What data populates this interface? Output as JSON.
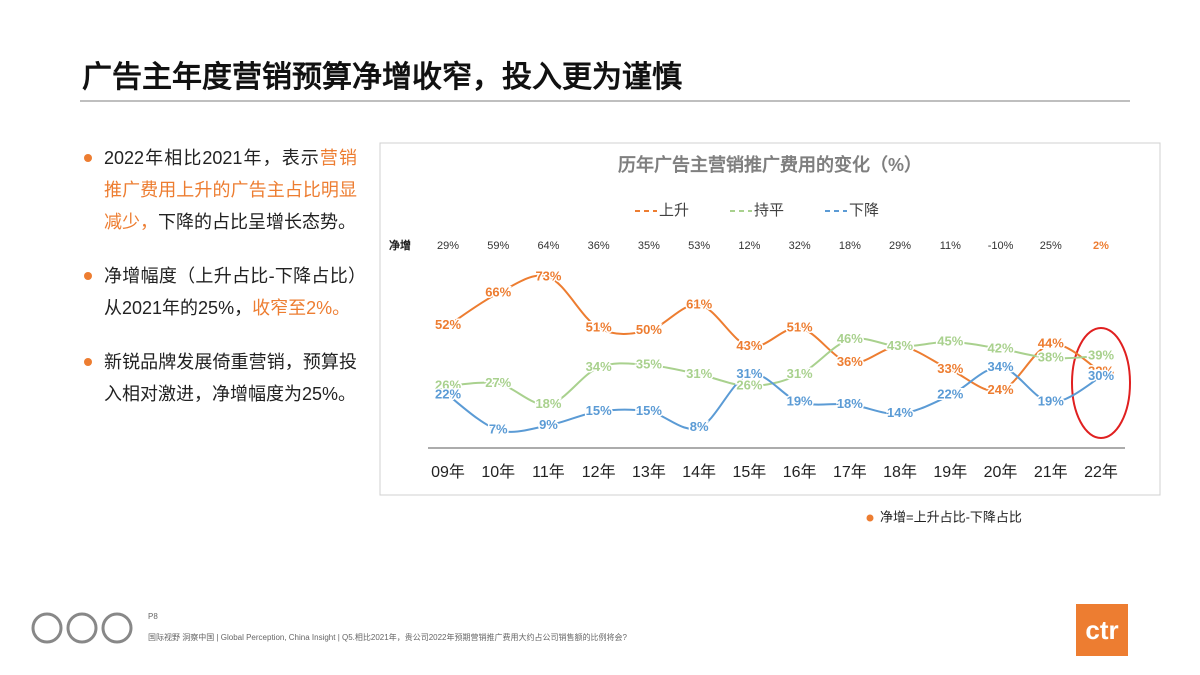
{
  "title": "广告主年度营销预算净增收窄，投入更为谨慎",
  "bullets": [
    {
      "parts": [
        {
          "text": "2022年相比2021年，表示"
        },
        {
          "text": "营销推广费用上升的广告主占比明显减少，",
          "highlight": true
        },
        {
          "text": "下降的占比呈增长态势。"
        }
      ]
    },
    {
      "parts": [
        {
          "text": "净增幅度（上升占比-下降占比）从2021年的25%，"
        },
        {
          "text": "收窄至2%。",
          "highlight": true
        }
      ]
    },
    {
      "parts": [
        {
          "text": "新锐品牌发展倚重营销，预算投入相对激进，净增幅度为25%。"
        }
      ]
    }
  ],
  "chart_data": {
    "type": "line",
    "title": "历年广告主营销推广费用的变化（%）",
    "categories": [
      "09年",
      "10年",
      "11年",
      "12年",
      "13年",
      "14年",
      "15年",
      "16年",
      "17年",
      "18年",
      "19年",
      "20年",
      "21年",
      "22年"
    ],
    "series": [
      {
        "name": "上升",
        "color": "#ed7d31",
        "values": [
          52,
          66,
          73,
          51,
          50,
          61,
          43,
          51,
          36,
          43,
          33,
          24,
          44,
          32
        ],
        "value_labels": [
          "52%",
          "66%",
          "73%",
          "51%",
          "50%",
          "61%",
          "43%",
          "51%",
          "36%",
          "43%",
          "33%",
          "24%",
          "44%",
          "32%"
        ]
      },
      {
        "name": "持平",
        "color": "#a9d18e",
        "values": [
          26,
          27,
          18,
          34,
          35,
          31,
          26,
          31,
          46,
          43,
          45,
          42,
          38,
          39
        ],
        "value_labels": [
          "26%",
          "27%",
          "18%",
          "34%",
          "35%",
          "31%",
          "26%",
          "31%",
          "46%",
          "43%",
          "45%",
          "42%",
          "38%",
          "39%"
        ]
      },
      {
        "name": "下降",
        "color": "#5b9bd5",
        "values": [
          22,
          7,
          9,
          15,
          15,
          8,
          31,
          19,
          18,
          14,
          22,
          34,
          19,
          30
        ],
        "value_labels": [
          "22%",
          "7%",
          "9%",
          "15%",
          "15%",
          "8%",
          "31%",
          "19%",
          "18%",
          "14%",
          "22%",
          "34%",
          "19%",
          "30%"
        ]
      }
    ],
    "net": {
      "label": "净增",
      "values": [
        29,
        59,
        64,
        36,
        35,
        53,
        12,
        32,
        18,
        29,
        11,
        -10,
        25,
        2
      ],
      "value_labels": [
        "29%",
        "59%",
        "64%",
        "36%",
        "35%",
        "53%",
        "12%",
        "32%",
        "18%",
        "29%",
        "11%",
        "-10%",
        "25%",
        "2%"
      ]
    },
    "note": "净增=上升占比-下降占比"
  },
  "footer": {
    "page": "P8",
    "source": "国际视野 洞察中国 | Global Perception, China Insight | Q5.相比2021年，贵公司2022年预期营销推广费用大约占公司销售额的比例将会?",
    "logo": "ctr"
  }
}
